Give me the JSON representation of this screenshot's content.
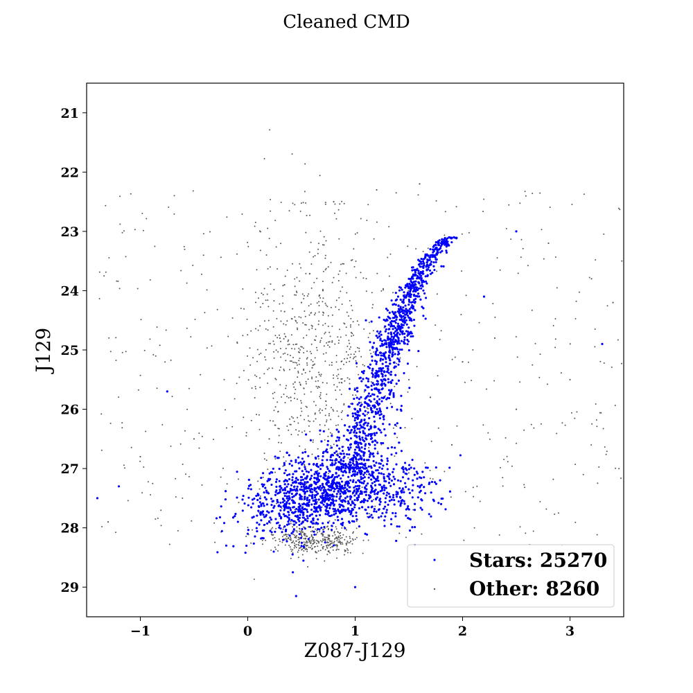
{
  "chart_data": {
    "type": "scatter",
    "title": "Cleaned CMD",
    "xlabel": "Z087-J129",
    "ylabel": "J129",
    "xlim": [
      -1.5,
      3.5
    ],
    "ylim": [
      29.5,
      20.5
    ],
    "y_inverted": true,
    "xticks": [
      -1,
      0,
      1,
      2,
      3
    ],
    "yticks": [
      21,
      22,
      23,
      24,
      25,
      26,
      27,
      28,
      29
    ],
    "grid": false,
    "legend_position": "lower-right",
    "legend": [
      "Stars: 25270",
      "Other: 8260"
    ],
    "series": [
      {
        "name": "Stars: 25270",
        "color": "#0000ff",
        "count": 25270,
        "points": [
          [
            1.92,
            23.1
          ],
          [
            1.8,
            23.2
          ],
          [
            1.7,
            23.3
          ],
          [
            1.6,
            23.5
          ],
          [
            1.5,
            23.8
          ],
          [
            1.4,
            24.1
          ],
          [
            1.3,
            24.5
          ],
          [
            1.25,
            24.9
          ],
          [
            1.2,
            25.2
          ],
          [
            1.1,
            25.6
          ],
          [
            1.0,
            26.0
          ],
          [
            0.95,
            26.4
          ],
          [
            0.9,
            26.8
          ],
          [
            0.8,
            27.2
          ],
          [
            0.6,
            27.5
          ],
          [
            0.4,
            27.7
          ],
          [
            0.2,
            27.9
          ],
          [
            0.0,
            28.1
          ],
          [
            -0.2,
            28.3
          ],
          [
            1.4,
            27.2
          ],
          [
            1.6,
            27.4
          ],
          [
            1.8,
            27.6
          ],
          [
            2.5,
            23.0
          ],
          [
            3.3,
            24.9
          ],
          [
            -1.4,
            27.5
          ],
          [
            -0.75,
            25.7
          ],
          [
            0.42,
            28.75
          ],
          [
            0.45,
            29.15
          ],
          [
            1.0,
            29.0
          ],
          [
            -1.2,
            27.3
          ],
          [
            2.2,
            24.1
          ],
          [
            1.1,
            24.5
          ]
        ]
      },
      {
        "name": "Other: 8260",
        "color": "#000000",
        "count": 8260,
        "points": [
          [
            0.5,
            24.2
          ],
          [
            0.7,
            24.0
          ],
          [
            0.3,
            24.8
          ],
          [
            0.6,
            25.3
          ],
          [
            0.4,
            25.8
          ],
          [
            0.2,
            26.5
          ],
          [
            1.5,
            25.5
          ],
          [
            1.7,
            25.8
          ],
          [
            2.0,
            25.2
          ],
          [
            2.5,
            26.0
          ],
          [
            3.0,
            25.5
          ],
          [
            3.4,
            24.2
          ],
          [
            0.8,
            22.5
          ],
          [
            1.2,
            22.3
          ],
          [
            1.6,
            22.2
          ],
          [
            0.5,
            28.3
          ],
          [
            0.7,
            28.35
          ],
          [
            -0.5,
            26.5
          ],
          [
            -1.0,
            26.8
          ],
          [
            -1.3,
            27.9
          ],
          [
            2.8,
            23.2
          ],
          [
            3.2,
            23.8
          ],
          [
            2.3,
            24.8
          ],
          [
            1.9,
            26.6
          ]
        ]
      }
    ]
  }
}
